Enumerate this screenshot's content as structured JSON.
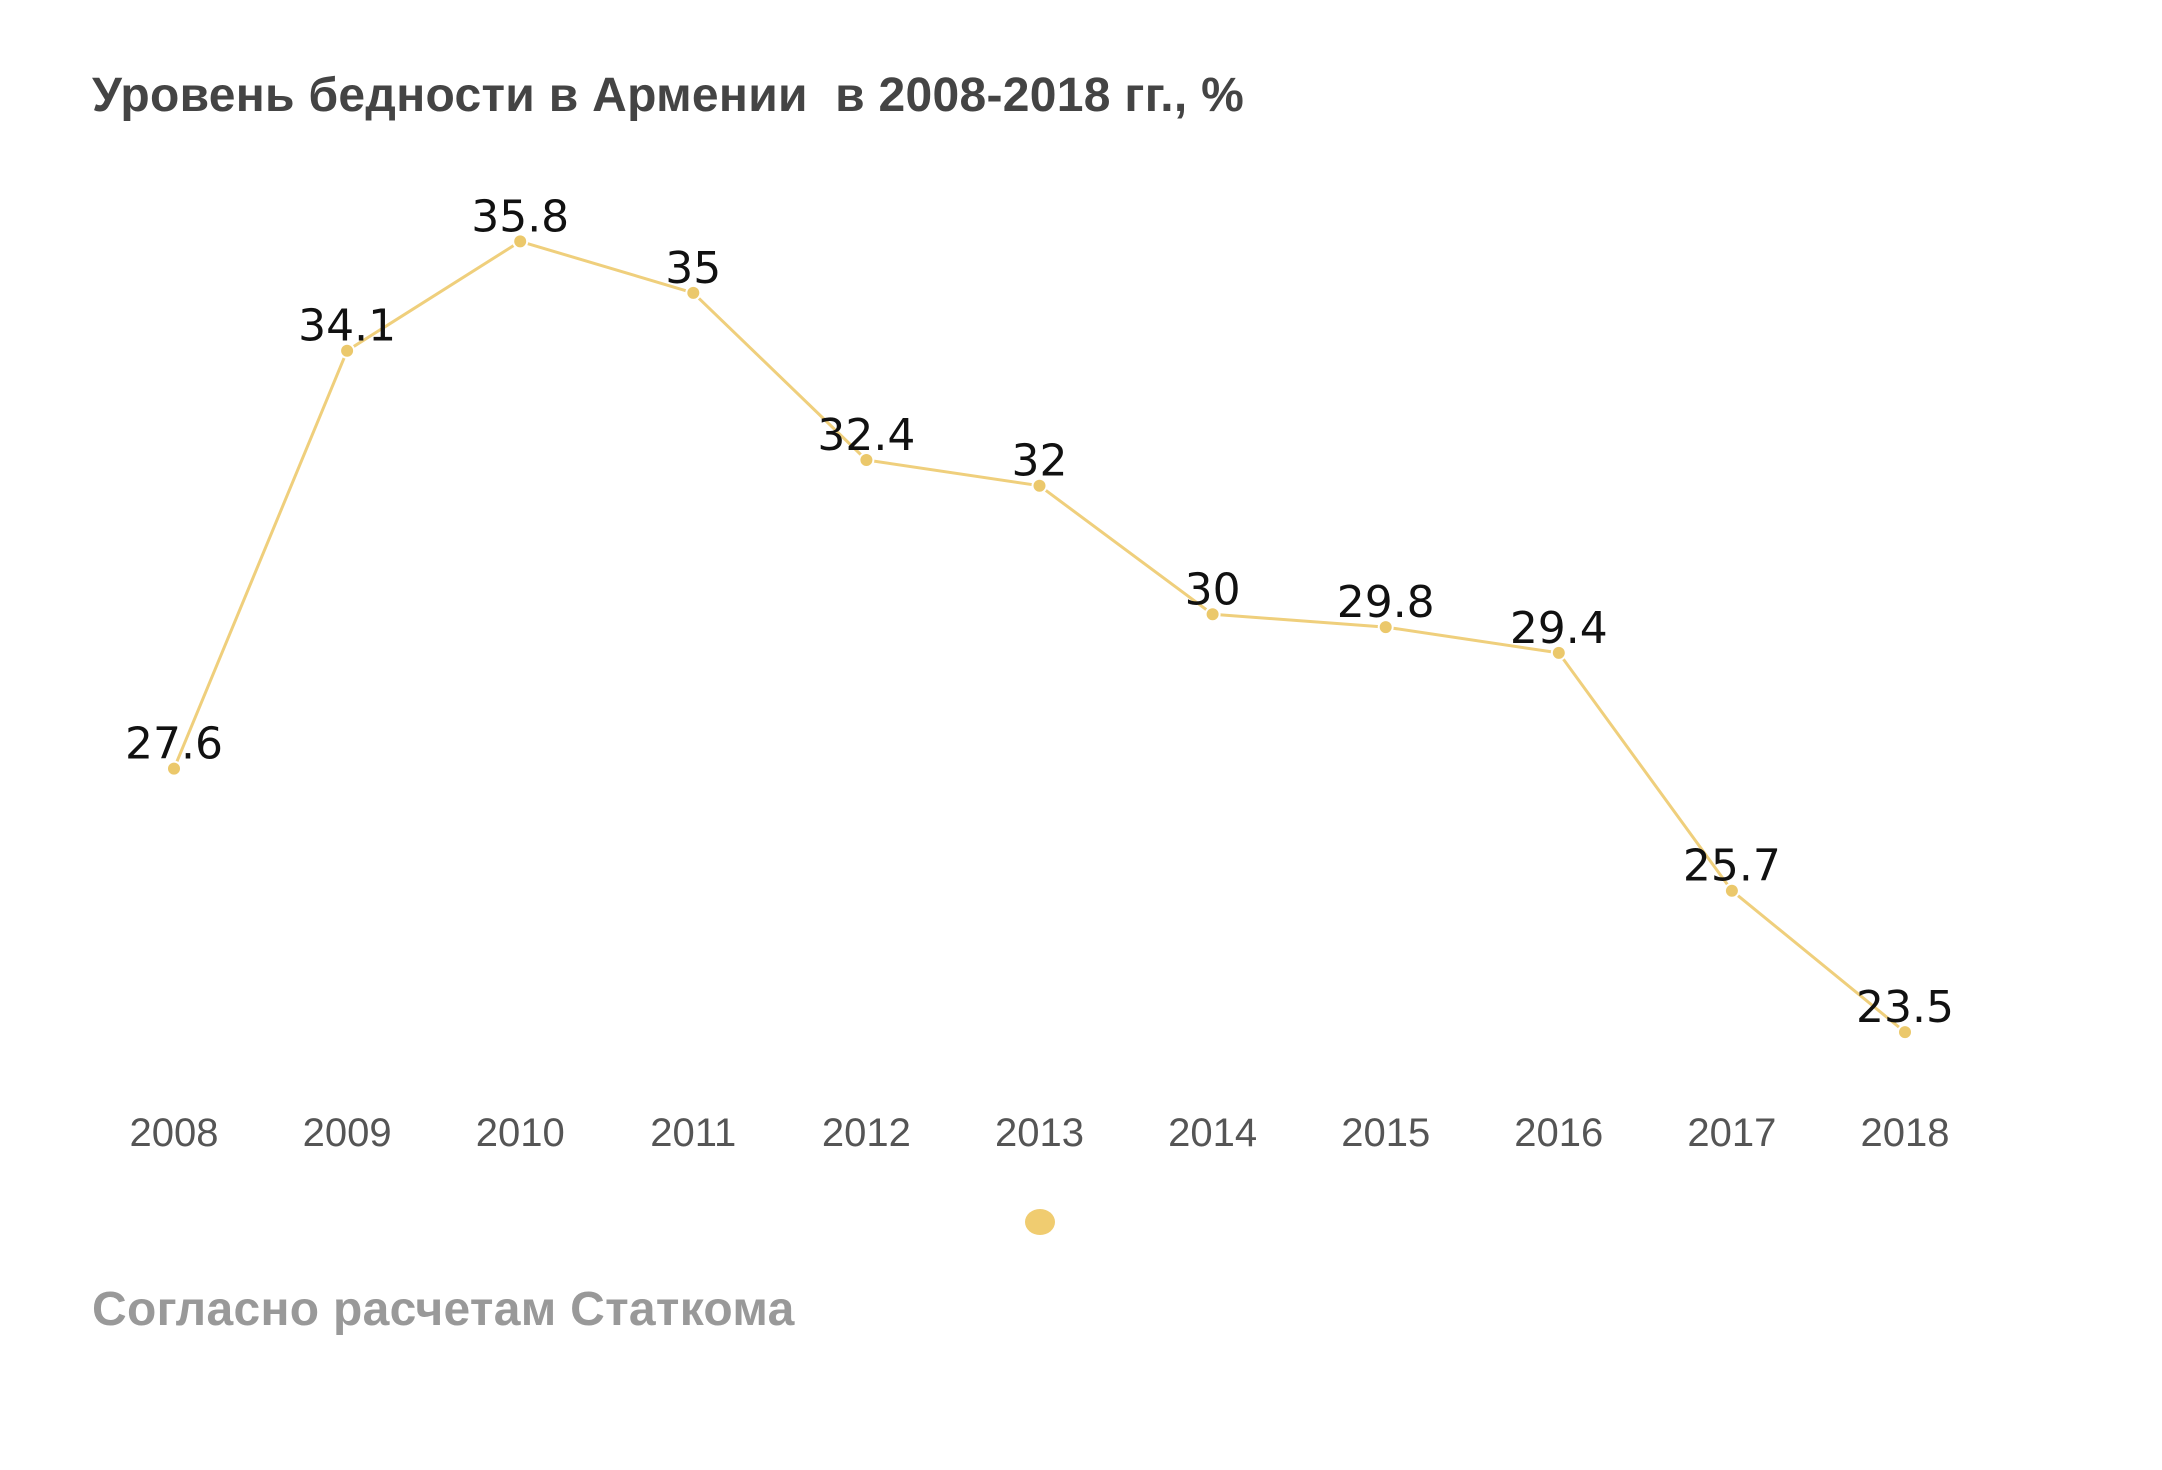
{
  "page": {
    "title": "Уровень бедности в Армении  в 2008-2018 гг., %",
    "source": "Согласно расчетам Статкома"
  },
  "colors": {
    "line": "#EFCF7C",
    "point": "#EBC86B",
    "legend_marker": "#F0CC70",
    "data_label": "#111111",
    "tick_label": "#555555"
  },
  "chart_data": {
    "type": "line",
    "title": "Уровень бедности в Армении  в 2008-2018 гг., %",
    "categories": [
      "2008",
      "2009",
      "2010",
      "2011",
      "2012",
      "2013",
      "2014",
      "2015",
      "2016",
      "2017",
      "2018"
    ],
    "series": [
      {
        "values": [
          27.6,
          34.1,
          35.8,
          35,
          32.4,
          32,
          30,
          29.8,
          29.4,
          25.7,
          23.5
        ],
        "labels": [
          "27.6",
          "34.1",
          "35.8",
          "35",
          "32.4",
          "32",
          "30",
          "29.8",
          "29.4",
          "25.7",
          "23.5"
        ]
      }
    ],
    "ylim": [
      22.6,
      36.6
    ],
    "grid": false,
    "y_axis_visible": false,
    "legend": "bottom-center",
    "data_labels": true
  }
}
